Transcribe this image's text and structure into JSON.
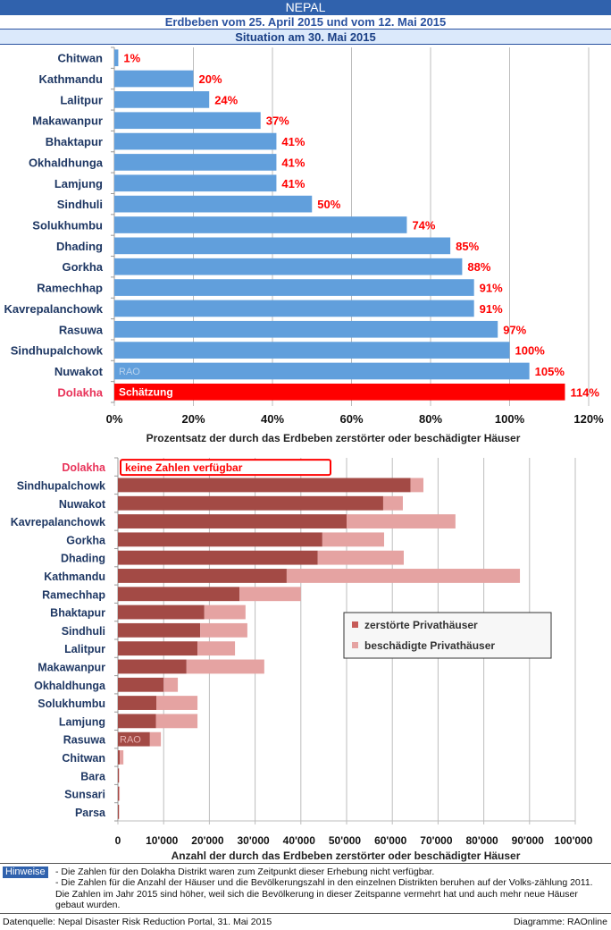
{
  "header": {
    "title": "NEPAL",
    "subtitle": "Erdbeben vom 25. April 2015 und vom 12. Mai 2015",
    "situation": "Situation am 30. Mai 2015"
  },
  "colors": {
    "header_bg": "#3062ad",
    "bar_blue": "#619fdc",
    "bar_red": "#ff0000",
    "value_label": "#ff0000",
    "category_label": "#1f3864",
    "highlight_label": "#e8345a",
    "destroyed": "#a34a45",
    "damaged": "#e5a3a2"
  },
  "chart_data": [
    {
      "type": "bar",
      "orientation": "horizontal",
      "title": "",
      "xlabel": "Prozentsatz der durch das Erdbeben zerstörter oder beschädigter Häuser",
      "ylabel": "",
      "xlim": [
        0,
        120
      ],
      "xticks": [
        "0%",
        "20%",
        "40%",
        "60%",
        "80%",
        "100%",
        "120%"
      ],
      "grid": true,
      "categories": [
        "Chitwan",
        "Kathmandu",
        "Lalitpur",
        "Makawanpur",
        "Bhaktapur",
        "Okhaldhunga",
        "Lamjung",
        "Sindhuli",
        "Solukhumbu",
        "Dhading",
        "Gorkha",
        "Ramechhap",
        "Kavrepalanchowk",
        "Rasuwa",
        "Sindhupalchowk",
        "Nuwakot",
        "Dolakha"
      ],
      "values": [
        1,
        20,
        24,
        37,
        41,
        41,
        41,
        50,
        74,
        85,
        88,
        91,
        91,
        97,
        100,
        105,
        114
      ],
      "value_labels": [
        "1%",
        "20%",
        "24%",
        "37%",
        "41%",
        "41%",
        "41%",
        "50%",
        "74%",
        "85%",
        "88%",
        "91%",
        "91%",
        "97%",
        "100%",
        "105%",
        "114%"
      ],
      "highlight_category": "Dolakha",
      "annotations": [
        {
          "category": "Nuwakot",
          "text": "RAO"
        },
        {
          "category": "Dolakha",
          "text": "Schätzung"
        }
      ]
    },
    {
      "type": "bar",
      "orientation": "horizontal",
      "stacked": true,
      "title": "",
      "xlabel": "Anzahl der durch das Erdbeben zerstörter oder beschädigter Häuser",
      "ylabel": "",
      "xlim": [
        0,
        100000
      ],
      "xticks": [
        "0",
        "10'000",
        "20'000",
        "30'000",
        "40'000",
        "50'000",
        "60'000",
        "70'000",
        "80'000",
        "90'000",
        "100'000"
      ],
      "grid": true,
      "legend": "center-right",
      "categories": [
        "Dolakha",
        "Sindhupalchowk",
        "Nuwakot",
        "Kavrepalanchowk",
        "Gorkha",
        "Dhading",
        "Kathmandu",
        "Ramechhap",
        "Bhaktapur",
        "Sindhuli",
        "Lalitpur",
        "Makawanpur",
        "Okhaldhunga",
        "Solukhumbu",
        "Lamjung",
        "Rasuwa",
        "Chitwan",
        "Bara",
        "Sunsari",
        "Parsa"
      ],
      "series": [
        {
          "name": "zerstörte Privathäuser",
          "values": [
            null,
            64000,
            58000,
            50000,
            44700,
            43700,
            36900,
            26600,
            18900,
            18000,
            17400,
            15000,
            10000,
            8400,
            8300,
            7000,
            400,
            200,
            200,
            100
          ]
        },
        {
          "name": "beschädigte Privathäuser",
          "values": [
            null,
            2800,
            4300,
            23800,
            13500,
            18800,
            51000,
            13400,
            9000,
            10300,
            8200,
            17000,
            3100,
            9000,
            9100,
            2400,
            800,
            100,
            200,
            100
          ]
        }
      ],
      "highlight_category": "Dolakha",
      "annotations": [
        {
          "category": "Dolakha",
          "text": "keine Zahlen verfügbar"
        },
        {
          "category": "Rasuwa",
          "text": "RAO"
        }
      ]
    }
  ],
  "notes": {
    "badge": "Hinweise",
    "items": [
      "- Die Zahlen für den Dolakha Distrikt waren zum Zeitpunkt dieser Erhebung nicht verfügbar.",
      "- Die Zahlen für die Anzahl der Häuser und die Bevölkerungszahl in den einzelnen Distrikten beruhen auf der Volks-zählung 2011. Die Zahlen im Jahr 2015 sind höher, weil sich die Bevölkerung in dieser Zeitspanne vermehrt hat und auch mehr neue Häuser gebaut wurden."
    ]
  },
  "footer": {
    "source": "Datenquelle:  Nepal Disaster Risk Reduction Portal, 31. Mai  2015",
    "credit": "Diagramme: RAOnline"
  }
}
